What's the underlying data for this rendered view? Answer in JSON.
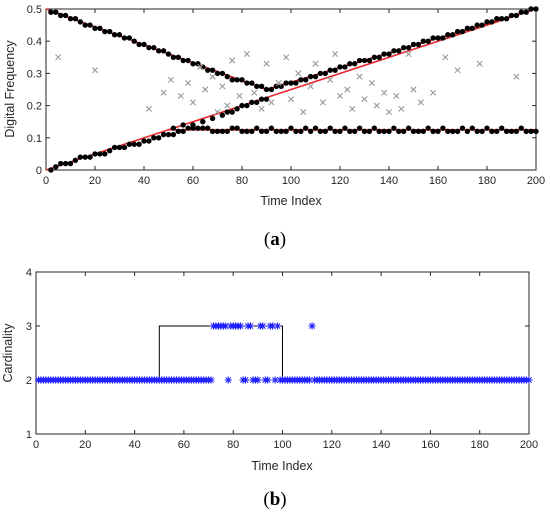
{
  "chart_data": [
    {
      "type": "scatter",
      "panel_label": "a",
      "xlabel": "Time Index",
      "ylabel": "Digital Frequency",
      "xlim": [
        0,
        200
      ],
      "ylim": [
        0,
        0.5
      ],
      "xticks": [
        "0",
        "20",
        "40",
        "60",
        "80",
        "100",
        "120",
        "140",
        "160",
        "180",
        "200"
      ],
      "yticks": [
        "0",
        "0.1",
        "0.2",
        "0.3",
        "0.4",
        "0.5"
      ],
      "grid": false,
      "colors": {
        "estimates": "#000000",
        "outliers": "#999999",
        "truth": "#e8262a"
      },
      "true_tracks": [
        {
          "x": [
            0,
            90,
            200
          ],
          "y": [
            0.5,
            0.25,
            0.5
          ]
        },
        {
          "x": [
            0,
            50,
            200
          ],
          "y": [
            0.0,
            0.125,
            0.125
          ]
        },
        {
          "x": [
            50,
            200
          ],
          "y": [
            0.125,
            0.5
          ]
        }
      ],
      "series": [
        {
          "marker": "dot",
          "x": [
            2,
            4,
            6,
            8,
            10,
            12,
            14,
            16,
            18,
            20,
            22,
            24,
            26,
            28,
            30,
            32,
            34,
            36,
            38,
            40,
            42,
            44,
            46,
            48,
            50,
            52,
            54,
            56,
            58,
            60,
            62,
            64,
            66,
            68,
            70,
            72,
            74,
            76,
            78,
            80,
            82,
            84,
            86,
            88,
            90,
            92,
            94,
            96,
            98,
            100,
            102,
            104,
            106,
            108,
            110,
            112,
            114,
            116,
            118,
            120,
            122,
            124,
            126,
            128,
            130,
            132,
            134,
            136,
            138,
            140,
            142,
            144,
            146,
            148,
            150,
            152,
            154,
            156,
            158,
            160,
            162,
            164,
            166,
            168,
            170,
            172,
            174,
            176,
            178,
            180,
            182,
            184,
            186,
            188,
            190,
            192,
            194,
            196,
            198,
            200
          ],
          "y": [
            0.49,
            0.49,
            0.48,
            0.48,
            0.47,
            0.47,
            0.46,
            0.45,
            0.45,
            0.44,
            0.44,
            0.43,
            0.43,
            0.42,
            0.42,
            0.41,
            0.41,
            0.4,
            0.39,
            0.39,
            0.38,
            0.38,
            0.37,
            0.37,
            0.36,
            0.35,
            0.35,
            0.34,
            0.34,
            0.33,
            0.33,
            0.32,
            0.31,
            0.31,
            0.3,
            0.3,
            0.29,
            0.28,
            0.28,
            0.28,
            0.27,
            0.27,
            0.26,
            0.26,
            0.25,
            0.25,
            0.26,
            0.26,
            0.27,
            0.27,
            0.27,
            0.28,
            0.28,
            0.29,
            0.29,
            0.3,
            0.3,
            0.31,
            0.31,
            0.32,
            0.32,
            0.33,
            0.33,
            0.34,
            0.34,
            0.34,
            0.35,
            0.35,
            0.36,
            0.36,
            0.37,
            0.37,
            0.38,
            0.38,
            0.39,
            0.39,
            0.4,
            0.4,
            0.41,
            0.41,
            0.41,
            0.42,
            0.42,
            0.43,
            0.43,
            0.44,
            0.44,
            0.45,
            0.45,
            0.46,
            0.46,
            0.47,
            0.47,
            0.47,
            0.48,
            0.48,
            0.49,
            0.49,
            0.5,
            0.5
          ]
        },
        {
          "marker": "dot",
          "x": [
            2,
            4,
            6,
            8,
            10,
            12,
            14,
            16,
            18,
            20,
            22,
            24,
            26,
            28,
            30,
            32,
            34,
            36,
            38,
            40,
            42,
            44,
            46,
            48,
            50,
            52,
            54,
            56,
            58,
            60,
            62,
            64,
            66,
            68,
            70,
            72,
            74,
            76,
            78,
            80,
            82,
            84,
            86,
            88,
            90,
            92,
            94,
            96,
            98,
            100,
            102,
            104,
            106,
            108,
            110,
            112,
            114,
            116,
            118,
            120,
            122,
            124,
            126,
            128,
            130,
            132,
            134,
            136,
            138,
            140,
            142,
            144,
            146,
            148,
            150,
            152,
            154,
            156,
            158,
            160,
            162,
            164,
            166,
            168,
            170,
            172,
            174,
            176,
            178,
            180,
            182,
            184,
            186,
            188,
            190,
            192,
            194,
            196,
            198,
            200
          ],
          "y": [
            0.0,
            0.01,
            0.02,
            0.02,
            0.02,
            0.03,
            0.04,
            0.04,
            0.04,
            0.05,
            0.05,
            0.05,
            0.06,
            0.07,
            0.07,
            0.07,
            0.08,
            0.08,
            0.08,
            0.09,
            0.09,
            0.1,
            0.1,
            0.11,
            0.11,
            0.11,
            0.12,
            0.12,
            0.13,
            0.13,
            0.13,
            0.13,
            0.13,
            0.12,
            0.12,
            0.12,
            0.12,
            0.13,
            0.13,
            0.12,
            0.12,
            0.12,
            0.13,
            0.12,
            0.12,
            0.13,
            0.12,
            0.12,
            0.12,
            0.13,
            0.12,
            0.12,
            0.13,
            0.12,
            0.13,
            0.12,
            0.12,
            0.13,
            0.12,
            0.12,
            0.13,
            0.12,
            0.12,
            0.13,
            0.12,
            0.12,
            0.13,
            0.12,
            0.12,
            0.12,
            0.13,
            0.12,
            0.12,
            0.13,
            0.12,
            0.12,
            0.12,
            0.13,
            0.12,
            0.12,
            0.13,
            0.12,
            0.12,
            0.12,
            0.13,
            0.12,
            0.13,
            0.12,
            0.12,
            0.13,
            0.12,
            0.12,
            0.13,
            0.12,
            0.12,
            0.12,
            0.13,
            0.12,
            0.12,
            0.12
          ]
        },
        {
          "marker": "dot",
          "x": [
            52,
            56,
            60,
            64,
            68,
            72,
            74,
            76,
            78,
            80,
            82,
            84,
            86,
            88,
            90
          ],
          "y": [
            0.13,
            0.14,
            0.14,
            0.15,
            0.16,
            0.17,
            0.18,
            0.18,
            0.19,
            0.2,
            0.2,
            0.21,
            0.21,
            0.22,
            0.22
          ]
        },
        {
          "marker": "x",
          "x": [
            5,
            20,
            42,
            48,
            51,
            55,
            58,
            60,
            63,
            65,
            68,
            70,
            72,
            74,
            76,
            79,
            82,
            85,
            88,
            90,
            92,
            95,
            98,
            100,
            103,
            105,
            108,
            110,
            113,
            116,
            118,
            120,
            123,
            125,
            128,
            130,
            133,
            135,
            138,
            140,
            143,
            145,
            148,
            150,
            153,
            158,
            163,
            168,
            177,
            192
          ],
          "y": [
            0.35,
            0.31,
            0.19,
            0.24,
            0.28,
            0.23,
            0.27,
            0.21,
            0.32,
            0.25,
            0.29,
            0.18,
            0.26,
            0.2,
            0.34,
            0.23,
            0.36,
            0.24,
            0.19,
            0.33,
            0.21,
            0.27,
            0.35,
            0.22,
            0.3,
            0.18,
            0.26,
            0.33,
            0.21,
            0.28,
            0.36,
            0.23,
            0.25,
            0.19,
            0.29,
            0.22,
            0.27,
            0.2,
            0.24,
            0.18,
            0.23,
            0.19,
            0.36,
            0.25,
            0.21,
            0.24,
            0.35,
            0.31,
            0.33,
            0.29
          ]
        }
      ]
    },
    {
      "type": "scatter",
      "panel_label": "b",
      "xlabel": "Time Index",
      "ylabel": "Cardinality",
      "xlim": [
        0,
        200
      ],
      "ylim": [
        1,
        4
      ],
      "xticks": [
        "0",
        "20",
        "40",
        "60",
        "80",
        "100",
        "120",
        "140",
        "160",
        "180",
        "200"
      ],
      "yticks": [
        "1",
        "2",
        "3",
        "4"
      ],
      "grid": false,
      "colors": {
        "estimates": "#2121ff",
        "truth": "#000000"
      },
      "true_cardinality": {
        "x": [
          0,
          50,
          50,
          100,
          100,
          200
        ],
        "y": [
          2,
          2,
          3,
          3,
          2,
          2
        ]
      },
      "estimated_cardinality": {
        "x": [
          1,
          2,
          3,
          4,
          5,
          6,
          7,
          8,
          9,
          10,
          11,
          12,
          13,
          14,
          15,
          16,
          17,
          18,
          19,
          20,
          21,
          22,
          23,
          24,
          25,
          26,
          27,
          28,
          29,
          30,
          31,
          32,
          33,
          34,
          35,
          36,
          37,
          38,
          39,
          40,
          41,
          42,
          43,
          44,
          45,
          46,
          47,
          48,
          49,
          50,
          51,
          52,
          53,
          54,
          55,
          56,
          57,
          58,
          59,
          60,
          61,
          62,
          63,
          64,
          65,
          66,
          67,
          68,
          69,
          70,
          71,
          72,
          73,
          74,
          75,
          76,
          77,
          78,
          79,
          80,
          81,
          82,
          83,
          84,
          85,
          86,
          87,
          88,
          89,
          90,
          91,
          92,
          93,
          94,
          95,
          96,
          97,
          98,
          99,
          100,
          101,
          102,
          103,
          104,
          105,
          106,
          107,
          108,
          109,
          110,
          111,
          112,
          113,
          114,
          115,
          116,
          117,
          118,
          119,
          120,
          121,
          122,
          123,
          124,
          125,
          126,
          127,
          128,
          129,
          130,
          131,
          132,
          133,
          134,
          135,
          136,
          137,
          138,
          139,
          140,
          141,
          142,
          143,
          144,
          145,
          146,
          147,
          148,
          149,
          150,
          151,
          152,
          153,
          154,
          155,
          156,
          157,
          158,
          159,
          160,
          161,
          162,
          163,
          164,
          165,
          166,
          167,
          168,
          169,
          170,
          171,
          172,
          173,
          174,
          175,
          176,
          177,
          178,
          179,
          180,
          181,
          182,
          183,
          184,
          185,
          186,
          187,
          188,
          189,
          190,
          191,
          192,
          193,
          194,
          195,
          196,
          197,
          198,
          199,
          200
        ],
        "y": [
          2,
          2,
          2,
          2,
          2,
          2,
          2,
          2,
          2,
          2,
          2,
          2,
          2,
          2,
          2,
          2,
          2,
          2,
          2,
          2,
          2,
          2,
          2,
          2,
          2,
          2,
          2,
          2,
          2,
          2,
          2,
          2,
          2,
          2,
          2,
          2,
          2,
          2,
          2,
          2,
          2,
          2,
          2,
          2,
          2,
          2,
          2,
          2,
          2,
          2,
          2,
          2,
          2,
          2,
          2,
          2,
          2,
          2,
          2,
          2,
          2,
          2,
          2,
          2,
          2,
          2,
          2,
          2,
          2,
          2,
          2,
          3,
          3,
          3,
          3,
          3,
          3,
          2,
          3,
          3,
          3,
          3,
          3,
          2,
          2,
          3,
          3,
          2,
          2,
          2,
          3,
          3,
          2,
          2,
          3,
          3,
          2,
          3,
          2,
          2,
          2,
          2,
          2,
          2,
          2,
          2,
          2,
          2,
          2,
          2,
          2,
          3,
          2,
          2,
          2,
          2,
          2,
          2,
          2,
          2,
          2,
          2,
          2,
          2,
          2,
          2,
          2,
          2,
          2,
          2,
          2,
          2,
          2,
          2,
          2,
          2,
          2,
          2,
          2,
          2,
          2,
          2,
          2,
          2,
          2,
          2,
          2,
          2,
          2,
          2,
          2,
          2,
          2,
          2,
          2,
          2,
          2,
          2,
          2,
          2,
          2,
          2,
          2,
          2,
          2,
          2,
          2,
          2,
          2,
          2,
          2,
          2,
          2,
          2,
          2,
          2,
          2,
          2,
          2,
          2,
          2,
          2,
          2,
          2,
          2,
          2,
          2,
          2,
          2,
          2,
          2,
          2,
          2,
          2,
          2,
          2,
          2,
          2,
          2,
          2
        ]
      }
    }
  ]
}
